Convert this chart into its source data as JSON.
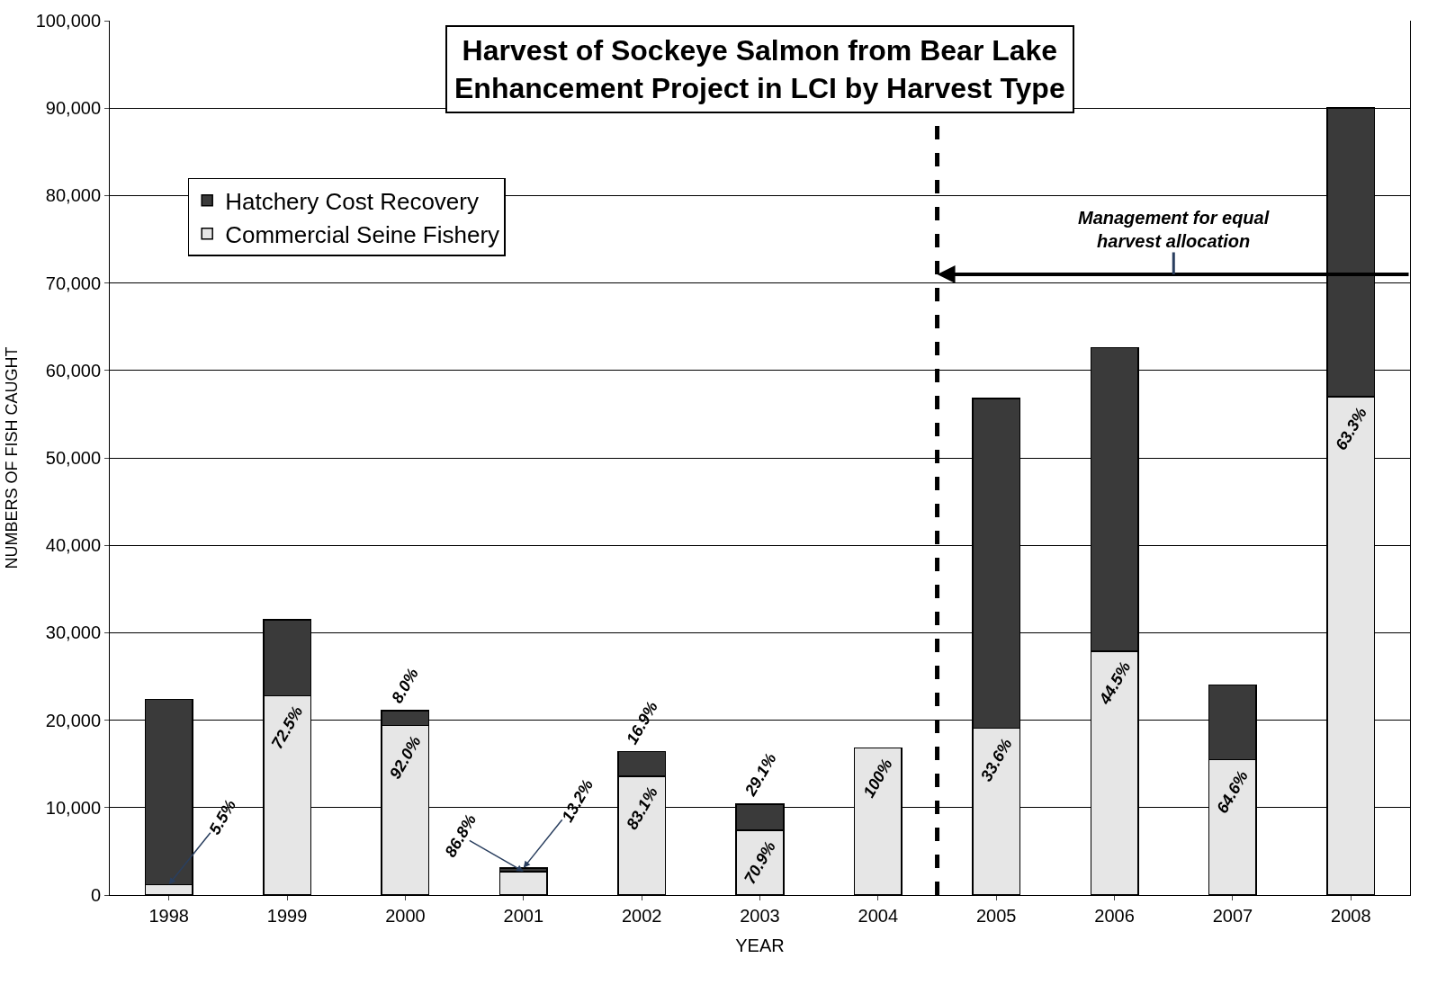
{
  "chart_data": {
    "type": "bar",
    "stacked": true,
    "title": "Harvest of Sockeye Salmon from Bear Lake\nEnhancement Project in LCI by Harvest Type",
    "xlabel": "YEAR",
    "ylabel": "NUMBERS OF FISH CAUGHT",
    "x": [
      1998,
      1999,
      2000,
      2001,
      2002,
      2003,
      2004,
      2005,
      2006,
      2007,
      2008
    ],
    "xlim": [
      1997.5,
      2008.5
    ],
    "xticks": [
      1998,
      1999,
      2000,
      2001,
      2002,
      2003,
      2004,
      2005,
      2006,
      2007,
      2008
    ],
    "ylim": [
      0,
      100000
    ],
    "yticks": [
      {
        "value": 0,
        "label": "0"
      },
      {
        "value": 10000,
        "label": "10,000"
      },
      {
        "value": 20000,
        "label": "20,000"
      },
      {
        "value": 30000,
        "label": "30,000"
      },
      {
        "value": 40000,
        "label": "40,000"
      },
      {
        "value": 50000,
        "label": "50,000"
      },
      {
        "value": 60000,
        "label": "60,000"
      },
      {
        "value": 70000,
        "label": "70,000"
      },
      {
        "value": 80000,
        "label": "80,000"
      },
      {
        "value": 90000,
        "label": "90,000"
      },
      {
        "value": 100000,
        "label": "100,000"
      }
    ],
    "series": [
      {
        "name": "Commercial Seine Fishery",
        "color": "#e6e6e6",
        "values": [
          1200,
          22800,
          19400,
          2700,
          13600,
          7400,
          16800,
          19100,
          27900,
          15500,
          57000
        ]
      },
      {
        "name": "Hatchery Cost Recovery",
        "color": "#3a3a3a",
        "values": [
          21200,
          8700,
          1700,
          400,
          2800,
          3000,
          0,
          37700,
          34700,
          8500,
          33000
        ]
      }
    ],
    "ref_lines": [
      {
        "axis": "x",
        "value": 2004.5,
        "line_style": "dashed",
        "color": "#000000"
      }
    ],
    "annotations": [
      "Management for equal\nharvest allocation",
      {
        "text": "5.5%",
        "x": 1998,
        "y": 1200
      },
      {
        "text": "72.5%",
        "x": 1999,
        "y": 22800
      },
      {
        "text": "8.0%",
        "x": 2000,
        "y": 21100
      },
      {
        "text": "92.0%",
        "x": 2000,
        "y": 19400
      },
      {
        "text": "86.8%",
        "x": 2001,
        "y": 2700
      },
      {
        "text": "13.2%",
        "x": 2001,
        "y": 3100
      },
      {
        "text": "16.9%",
        "x": 2002,
        "y": 16400
      },
      {
        "text": "83.1%",
        "x": 2002,
        "y": 13600
      },
      {
        "text": "29.1%",
        "x": 2003,
        "y": 10400
      },
      {
        "text": "70.9%",
        "x": 2003,
        "y": 7400
      },
      {
        "text": "100%",
        "x": 2004,
        "y": 16800
      },
      {
        "text": "33.6%",
        "x": 2005,
        "y": 19100
      },
      {
        "text": "44.5%",
        "x": 2006,
        "y": 27900
      },
      {
        "text": "64.6%",
        "x": 2007,
        "y": 15500
      },
      {
        "text": "63.3%",
        "x": 2008,
        "y": 57000
      }
    ],
    "grid": "y",
    "legend": "top left"
  }
}
